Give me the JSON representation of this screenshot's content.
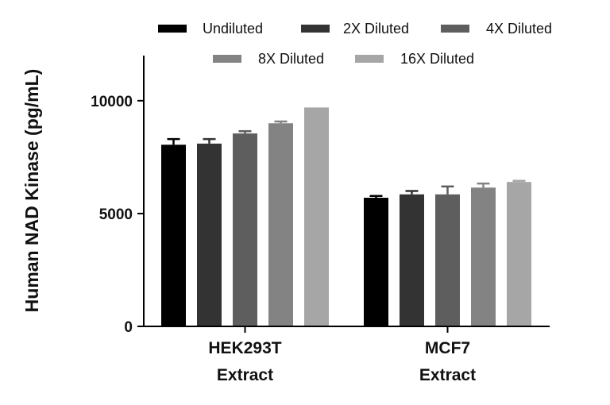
{
  "chart_data": {
    "type": "bar",
    "ylabel": "Human NAD Kinase (pg/mL)",
    "ylim": [
      0,
      12000
    ],
    "yticks": [
      "0",
      "5000",
      "10000"
    ],
    "categories": [
      {
        "line1": "HEK293T",
        "line2": "Extract"
      },
      {
        "line1": "MCF7",
        "line2": "Extract"
      }
    ],
    "series": [
      {
        "name": "Undiluted",
        "color": "#000000",
        "values": [
          8050,
          5700
        ],
        "errors": [
          250,
          80
        ]
      },
      {
        "name": "2X Diluted",
        "color": "#333333",
        "values": [
          8100,
          5850
        ],
        "errors": [
          200,
          150
        ]
      },
      {
        "name": "4X Diluted",
        "color": "#5e5e5e",
        "values": [
          8550,
          5850
        ],
        "errors": [
          100,
          350
        ]
      },
      {
        "name": "8X Diluted",
        "color": "#838383",
        "values": [
          9000,
          6150
        ],
        "errors": [
          80,
          180
        ]
      },
      {
        "name": "16X Diluted",
        "color": "#a6a6a6",
        "values": [
          9700,
          6400
        ],
        "errors": [
          0,
          50
        ]
      }
    ],
    "legend_position": "top",
    "grid": false
  }
}
